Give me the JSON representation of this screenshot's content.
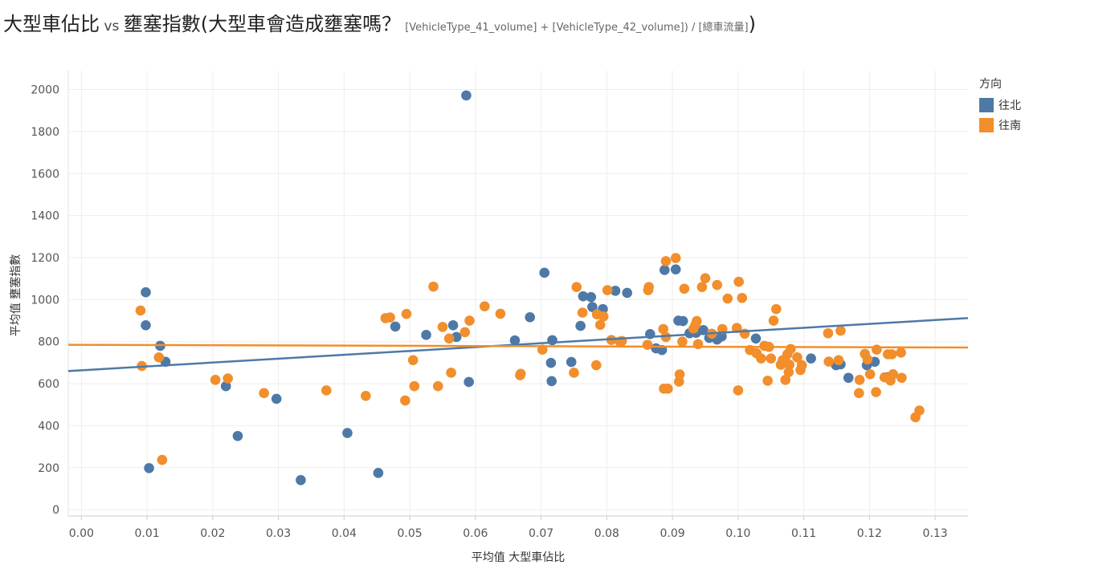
{
  "title": {
    "main": "大型車佔比",
    "vs": " vs ",
    "main2": "壅塞指數(大型車會造成壅塞嗎？",
    "formula": "[VehicleType_41_volume] + [VehicleType_42_volume]) / [總車流量]",
    "close": ")"
  },
  "legend": {
    "title": "方向",
    "items": [
      {
        "label": "往北",
        "color": "#4e79a7"
      },
      {
        "label": "往南",
        "color": "#f28e2b"
      }
    ]
  },
  "chart_data": {
    "type": "scatter",
    "xlabel": "平均值 大型車佔比",
    "ylabel": "平均值 壅塞指數",
    "xlim": [
      -0.002,
      0.135
    ],
    "ylim": [
      -30,
      2090
    ],
    "x_ticks": [
      "0.00",
      "0.01",
      "0.02",
      "0.03",
      "0.04",
      "0.05",
      "0.06",
      "0.07",
      "0.08",
      "0.09",
      "0.10",
      "0.11",
      "0.12",
      "0.13"
    ],
    "y_ticks": [
      "0",
      "200",
      "400",
      "600",
      "800",
      "1000",
      "1200",
      "1400",
      "1600",
      "1800",
      "2000"
    ],
    "grid": true,
    "legend_position": "top-right",
    "series": [
      {
        "name": "往北",
        "color": "#4e79a7",
        "trend": [
          [
            -0.002,
            660
          ],
          [
            0.135,
            912
          ]
        ],
        "points": [
          [
            0.0098,
            1035
          ],
          [
            0.0098,
            878
          ],
          [
            0.012,
            780
          ],
          [
            0.0128,
            704
          ],
          [
            0.0103,
            198
          ],
          [
            0.022,
            588
          ],
          [
            0.0238,
            351
          ],
          [
            0.0297,
            528
          ],
          [
            0.0334,
            141
          ],
          [
            0.0405,
            365
          ],
          [
            0.0452,
            175
          ],
          [
            0.0478,
            872
          ],
          [
            0.0525,
            832
          ],
          [
            0.0566,
            878
          ],
          [
            0.0571,
            822
          ],
          [
            0.0586,
            1972
          ],
          [
            0.059,
            608
          ],
          [
            0.066,
            806
          ],
          [
            0.0683,
            916
          ],
          [
            0.0705,
            1128
          ],
          [
            0.0715,
            699
          ],
          [
            0.0716,
            612
          ],
          [
            0.0717,
            807
          ],
          [
            0.0746,
            703
          ],
          [
            0.076,
            875
          ],
          [
            0.0764,
            1016
          ],
          [
            0.0776,
            1012
          ],
          [
            0.0778,
            965
          ],
          [
            0.0794,
            955
          ],
          [
            0.0813,
            1042
          ],
          [
            0.0831,
            1032
          ],
          [
            0.0866,
            836
          ],
          [
            0.0875,
            768
          ],
          [
            0.0884,
            760
          ],
          [
            0.0888,
            1141
          ],
          [
            0.0905,
            1144
          ],
          [
            0.0909,
            900
          ],
          [
            0.0916,
            898
          ],
          [
            0.0926,
            840
          ],
          [
            0.0936,
            842
          ],
          [
            0.0947,
            855
          ],
          [
            0.0956,
            818
          ],
          [
            0.0968,
            810
          ],
          [
            0.0975,
            825
          ],
          [
            0.1027,
            815
          ],
          [
            0.1111,
            720
          ],
          [
            0.1149,
            688
          ],
          [
            0.1156,
            692
          ],
          [
            0.1168,
            628
          ],
          [
            0.1196,
            688
          ],
          [
            0.1208,
            704
          ],
          [
            0.1227,
            630
          ]
        ]
      },
      {
        "name": "往南",
        "color": "#f28e2b",
        "trend": [
          [
            -0.002,
            785
          ],
          [
            0.135,
            772
          ]
        ],
        "points": [
          [
            0.009,
            948
          ],
          [
            0.0092,
            684
          ],
          [
            0.0118,
            725
          ],
          [
            0.0123,
            237
          ],
          [
            0.0204,
            618
          ],
          [
            0.0223,
            625
          ],
          [
            0.0278,
            555
          ],
          [
            0.0373,
            568
          ],
          [
            0.0433,
            542
          ],
          [
            0.0463,
            912
          ],
          [
            0.047,
            915
          ],
          [
            0.0493,
            520
          ],
          [
            0.0495,
            932
          ],
          [
            0.0505,
            712
          ],
          [
            0.0507,
            588
          ],
          [
            0.0536,
            1062
          ],
          [
            0.0543,
            588
          ],
          [
            0.055,
            870
          ],
          [
            0.056,
            815
          ],
          [
            0.0563,
            652
          ],
          [
            0.0584,
            845
          ],
          [
            0.0591,
            900
          ],
          [
            0.0614,
            968
          ],
          [
            0.0638,
            933
          ],
          [
            0.0668,
            640
          ],
          [
            0.0669,
            647
          ],
          [
            0.0702,
            762
          ],
          [
            0.075,
            652
          ],
          [
            0.0754,
            1060
          ],
          [
            0.0763,
            938
          ],
          [
            0.0784,
            688
          ],
          [
            0.0785,
            930
          ],
          [
            0.079,
            880
          ],
          [
            0.0795,
            920
          ],
          [
            0.0801,
            1045
          ],
          [
            0.0807,
            808
          ],
          [
            0.082,
            800
          ],
          [
            0.0823,
            803
          ],
          [
            0.0862,
            785
          ],
          [
            0.0863,
            1045
          ],
          [
            0.0864,
            1060
          ],
          [
            0.0886,
            860
          ],
          [
            0.0887,
            576
          ],
          [
            0.089,
            1183
          ],
          [
            0.089,
            822
          ],
          [
            0.0893,
            576
          ],
          [
            0.0905,
            1198
          ],
          [
            0.091,
            610
          ],
          [
            0.0911,
            644
          ],
          [
            0.0915,
            800
          ],
          [
            0.0918,
            1052
          ],
          [
            0.0932,
            862
          ],
          [
            0.0935,
            880
          ],
          [
            0.0937,
            898
          ],
          [
            0.0939,
            788
          ],
          [
            0.0945,
            1060
          ],
          [
            0.095,
            1102
          ],
          [
            0.096,
            838
          ],
          [
            0.0968,
            1070
          ],
          [
            0.0976,
            860
          ],
          [
            0.0984,
            1005
          ],
          [
            0.0998,
            865
          ],
          [
            0.1,
            568
          ],
          [
            0.1001,
            1085
          ],
          [
            0.1006,
            1008
          ],
          [
            0.101,
            838
          ],
          [
            0.1018,
            760
          ],
          [
            0.1028,
            745
          ],
          [
            0.1035,
            720
          ],
          [
            0.104,
            780
          ],
          [
            0.1045,
            614
          ],
          [
            0.1047,
            775
          ],
          [
            0.105,
            720
          ],
          [
            0.1054,
            900
          ],
          [
            0.1058,
            955
          ],
          [
            0.1065,
            690
          ],
          [
            0.1068,
            712
          ],
          [
            0.1072,
            705
          ],
          [
            0.1072,
            618
          ],
          [
            0.1075,
            740
          ],
          [
            0.1077,
            655
          ],
          [
            0.1078,
            690
          ],
          [
            0.108,
            765
          ],
          [
            0.109,
            725
          ],
          [
            0.1095,
            665
          ],
          [
            0.1097,
            688
          ],
          [
            0.1137,
            840
          ],
          [
            0.1138,
            705
          ],
          [
            0.1153,
            712
          ],
          [
            0.1156,
            852
          ],
          [
            0.1184,
            555
          ],
          [
            0.1185,
            618
          ],
          [
            0.1193,
            742
          ],
          [
            0.1197,
            715
          ],
          [
            0.1201,
            645
          ],
          [
            0.121,
            560
          ],
          [
            0.1211,
            762
          ],
          [
            0.1223,
            630
          ],
          [
            0.1228,
            740
          ],
          [
            0.1232,
            615
          ],
          [
            0.1234,
            740
          ],
          [
            0.1236,
            645
          ],
          [
            0.1248,
            748
          ],
          [
            0.1249,
            628
          ],
          [
            0.127,
            440
          ],
          [
            0.1276,
            472
          ]
        ]
      }
    ]
  }
}
